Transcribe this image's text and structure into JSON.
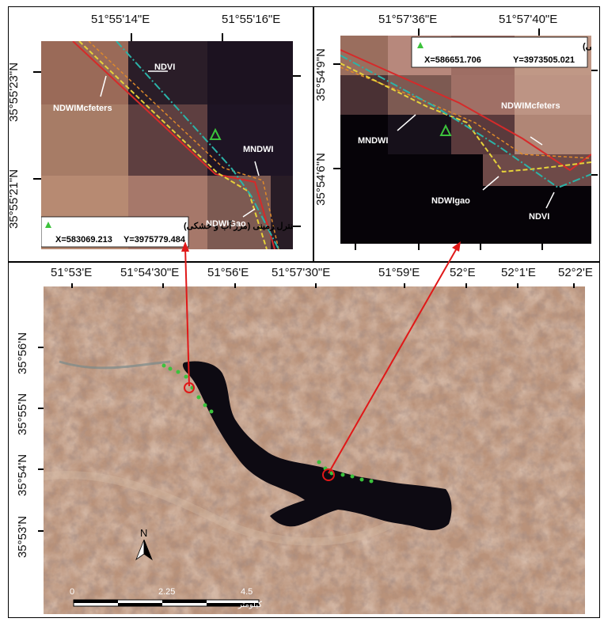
{
  "left_inset": {
    "top_labels": [
      "51°55'14\"E",
      "51°55'16\"E"
    ],
    "side_labels": [
      "35°55'23\"N",
      "35°55'21\"N"
    ],
    "bottom_labels": [
      "51°54'30\"E",
      "51°56'E"
    ],
    "index_labels": [
      "NDVI",
      "NDWIMcfeters",
      "MNDWI",
      "NDWIGao"
    ],
    "legend": {
      "title": "نقطه کنترل زمینی (مرز آب و خشکی)",
      "x_label": "X=583069.213",
      "y_label": "Y=3975779.484"
    }
  },
  "right_inset": {
    "top_labels": [
      "51°57'36\"E",
      "51°57'40\"E"
    ],
    "side_labels": [
      "35°54'9\"N",
      "35°54'6\"N"
    ],
    "bottom_labels": [
      "51°57'30\"E",
      "51°59'E",
      "52°E",
      "52°1'E",
      "52°2'E"
    ],
    "index_labels": [
      "MNDWI",
      "NDWIMcfeters",
      "NDWIgao",
      "NDVI"
    ],
    "legend": {
      "title": "نقطه کنترل زمینی (مرز آب و خشکی)",
      "x_label": "X=586651.706",
      "y_label": "Y=3973505.021"
    }
  },
  "main_map": {
    "top_labels": [
      "51°53'E"
    ],
    "side_labels": [
      "35°56'N",
      "35°55'N",
      "35°54'N",
      "35°53'N"
    ],
    "north_label": "N",
    "scale": {
      "labels": [
        "0",
        "2.25",
        "4.5"
      ],
      "unit": "کیلومتر"
    }
  },
  "colors": {
    "water": "#0d0a12",
    "terrain": "#b9927a",
    "ndvi_line": "#2bb3a8",
    "ndwi_mcfeters_line": "#d62a2a",
    "mndwi_line": "#e6d23a",
    "ndwi_gao_line": "#e08a2a",
    "gcp_marker": "#3cc23c",
    "pointer": "#e01818"
  }
}
